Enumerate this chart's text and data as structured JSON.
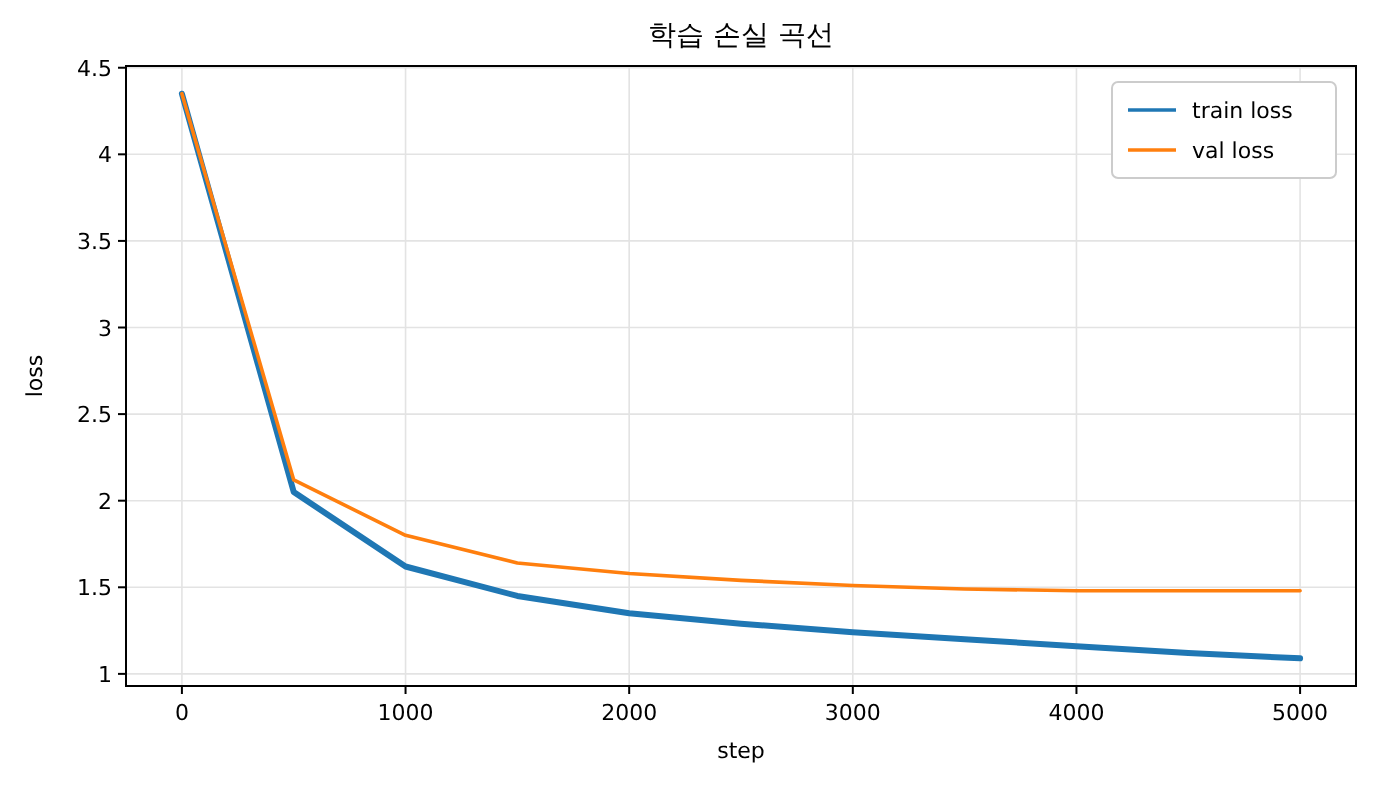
{
  "chart_data": {
    "type": "line",
    "title": "학습 손실 곡선",
    "xlabel": "step",
    "ylabel": "loss",
    "x": [
      0,
      500,
      1000,
      1500,
      2000,
      2500,
      3000,
      3500,
      4000,
      4500,
      5000
    ],
    "series": [
      {
        "name": "train loss",
        "color": "#1f77b4",
        "values": [
          4.35,
          2.05,
          1.62,
          1.45,
          1.35,
          1.29,
          1.24,
          1.2,
          1.16,
          1.12,
          1.09
        ]
      },
      {
        "name": "val loss",
        "color": "#ff7f0e",
        "values": [
          4.35,
          2.12,
          1.8,
          1.64,
          1.58,
          1.54,
          1.51,
          1.49,
          1.48,
          1.48,
          1.48
        ]
      }
    ],
    "xlim": [
      -250,
      5250
    ],
    "xticks": [
      0,
      1000,
      2000,
      3000,
      4000,
      5000
    ],
    "ylim": [
      0.93,
      4.51
    ],
    "yticks": [
      1,
      1.5,
      2,
      2.5,
      3,
      3.5,
      4,
      4.5
    ],
    "grid": true,
    "legend": "top right",
    "marker": "none",
    "line_style": "solid"
  }
}
